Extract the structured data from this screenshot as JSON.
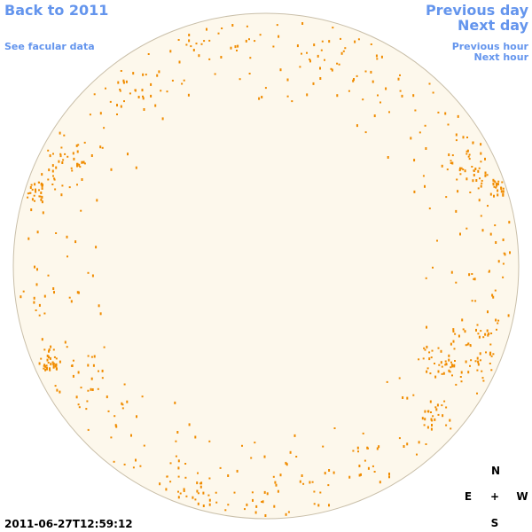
{
  "header": {
    "back_link": "Back to 2011",
    "facular_link": "See facular data"
  },
  "navigation": {
    "previous_day": "Previous day",
    "next_day": "Next day",
    "previous_hour": "Previous hour",
    "next_hour": "Next hour"
  },
  "timestamp": "2011-06-27T12:59:12",
  "compass": {
    "north": "N",
    "east": "E",
    "center": "+",
    "west": "W",
    "south": "S"
  }
}
